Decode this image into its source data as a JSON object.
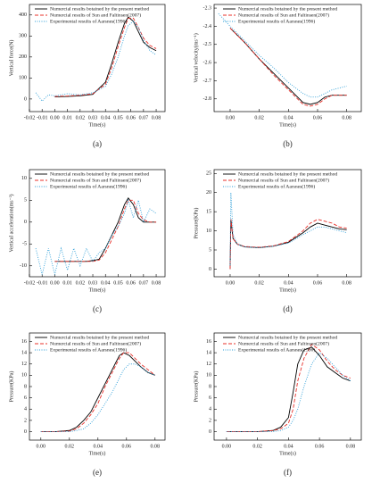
{
  "chart_data": [
    {
      "type": "line",
      "label": "(a)",
      "x_label": "Time(s)",
      "y_label": "Vertical force(N)",
      "legend": "upper left",
      "xlim": [
        -0.02,
        0.087
      ],
      "xticks": [
        -0.02,
        -0.01,
        {
          "value": 0,
          "label": "0.00"
        },
        0.01,
        0.02,
        0.03,
        0.04,
        0.05,
        0.06,
        0.07,
        0.08
      ],
      "ylim": [
        -60,
        450
      ],
      "yticks": [
        0,
        100,
        200,
        300,
        400
      ],
      "x": [
        -0.015,
        -0.01,
        -0.005,
        0,
        0.01,
        0.02,
        0.03,
        0.04,
        0.045,
        0.05,
        0.055,
        0.058,
        0.062,
        0.066,
        0.07,
        0.075,
        0.08
      ],
      "series": [
        {
          "name": "Numercial results botained by the present method",
          "color": "#000000",
          "style": "solid",
          "values": [
            null,
            null,
            null,
            10,
            12,
            15,
            22,
            80,
            170,
            270,
            360,
            390,
            370,
            320,
            270,
            245,
            230
          ]
        },
        {
          "name": "Numercial results of Sun and Faltinsen(2007)",
          "color": "#e8302a",
          "style": "dashed",
          "values": [
            null,
            null,
            null,
            12,
            14,
            18,
            25,
            70,
            150,
            250,
            340,
            385,
            385,
            340,
            290,
            255,
            240
          ]
        },
        {
          "name": "Experimental results of Aarsnes(1996)",
          "color": "#2f9fd8",
          "style": "dotted",
          "values": [
            30,
            -10,
            20,
            15,
            25,
            20,
            30,
            60,
            120,
            200,
            300,
            350,
            370,
            340,
            280,
            230,
            210
          ]
        }
      ]
    },
    {
      "type": "line",
      "label": "(b)",
      "x_label": "Time(s)",
      "y_label": "Vertical velocity(ms⁻¹)",
      "legend": "upper right",
      "xlim": [
        -0.011,
        0.09
      ],
      "xticks": [
        {
          "value": 0,
          "label": "0.00"
        },
        0.02,
        0.04,
        0.06,
        0.08
      ],
      "ylim": [
        -2.87,
        -2.28
      ],
      "yticks": [
        -2.3,
        -2.4,
        -2.5,
        -2.6,
        -2.7,
        -2.8
      ],
      "x": [
        -0.008,
        0,
        0.01,
        0.02,
        0.03,
        0.04,
        0.05,
        0.055,
        0.06,
        0.065,
        0.07,
        0.075,
        0.08
      ],
      "series": [
        {
          "name": "Numercial results botained by the present method",
          "color": "#000000",
          "style": "solid",
          "values": [
            null,
            -2.41,
            -2.49,
            -2.58,
            -2.66,
            -2.74,
            -2.82,
            -2.83,
            -2.82,
            -2.79,
            -2.78,
            -2.78,
            -2.78
          ]
        },
        {
          "name": "Numercial results of Sun and Faltinsen(2007)",
          "color": "#e8302a",
          "style": "dashed",
          "values": [
            null,
            -2.41,
            -2.49,
            -2.58,
            -2.67,
            -2.75,
            -2.83,
            -2.84,
            -2.83,
            -2.8,
            -2.78,
            -2.78,
            -2.78
          ]
        },
        {
          "name": "Experimental results of Aarsnes(1996)",
          "color": "#2f9fd8",
          "style": "dotted",
          "values": [
            -2.33,
            -2.4,
            -2.48,
            -2.56,
            -2.63,
            -2.71,
            -2.77,
            -2.79,
            -2.79,
            -2.77,
            -2.75,
            -2.74,
            -2.73
          ]
        }
      ]
    },
    {
      "type": "line",
      "label": "(c)",
      "x_label": "Time(s)",
      "y_label": "Vertical acceleration(ms⁻²)",
      "legend": "upper left",
      "xlim": [
        -0.02,
        0.087
      ],
      "xticks": [
        -0.02,
        -0.01,
        {
          "value": 0,
          "label": "0.00"
        },
        0.01,
        0.02,
        0.03,
        0.04,
        0.05,
        0.06,
        0.07,
        0.08
      ],
      "ylim": [
        -12.5,
        12
      ],
      "yticks": [
        -10,
        -5,
        0,
        5,
        10
      ],
      "x": [
        -0.015,
        -0.01,
        -0.005,
        0,
        0.005,
        0.01,
        0.015,
        0.02,
        0.025,
        0.03,
        0.035,
        0.04,
        0.045,
        0.05,
        0.055,
        0.058,
        0.062,
        0.066,
        0.07,
        0.075,
        0.08
      ],
      "series": [
        {
          "name": "Numercial results botained by the present method",
          "color": "#000000",
          "style": "solid",
          "values": [
            null,
            null,
            null,
            -9,
            -9,
            -9,
            -9,
            -9,
            -9,
            -8.8,
            -8.5,
            -6,
            -3,
            0,
            4,
            5.5,
            4,
            1,
            0,
            0,
            0
          ]
        },
        {
          "name": "Numercial results of Sun and Faltinsen(2007)",
          "color": "#e8302a",
          "style": "dashed",
          "values": [
            null,
            null,
            null,
            -9,
            -9,
            -9,
            -9,
            -9,
            -9,
            -9,
            -8.7,
            -7,
            -4,
            -1,
            3,
            5,
            5,
            2,
            0.5,
            0,
            0
          ]
        },
        {
          "name": "Experimental results of Aarsnes(1996)",
          "color": "#2f9fd8",
          "style": "dotted",
          "values": [
            -6,
            -12,
            -6,
            -12,
            -6,
            -11,
            -6,
            -10,
            -6,
            -9,
            -7,
            -6,
            -3,
            -1,
            2,
            5,
            1,
            5,
            0,
            3,
            2
          ]
        }
      ]
    },
    {
      "type": "line",
      "label": "(d)",
      "x_label": "Time(s)",
      "y_label": "Pressure(KPa)",
      "legend": "upper right",
      "xlim": [
        -0.011,
        0.09
      ],
      "xticks": [
        {
          "value": 0,
          "label": "0.00"
        },
        0.02,
        0.04,
        0.06,
        0.08
      ],
      "ylim": [
        -2,
        26
      ],
      "yticks": [
        0,
        5,
        10,
        15,
        20,
        25
      ],
      "x": [
        0,
        0.0005,
        0.002,
        0.005,
        0.01,
        0.02,
        0.03,
        0.04,
        0.05,
        0.055,
        0.06,
        0.065,
        0.07,
        0.075,
        0.08
      ],
      "series": [
        {
          "name": "Numercial results botained by the present method",
          "color": "#000000",
          "style": "solid",
          "values": [
            0,
            13,
            8,
            6.5,
            5.8,
            5.6,
            6,
            7,
            9.5,
            11,
            12,
            11.5,
            11,
            10.5,
            10.3
          ]
        },
        {
          "name": "Numercial results of Sun and Faltinsen(2007)",
          "color": "#e8302a",
          "style": "dashed",
          "values": [
            0,
            13,
            8,
            6.5,
            5.9,
            5.7,
            6.1,
            7.2,
            10,
            12,
            13,
            12.5,
            12,
            11,
            10.7
          ]
        },
        {
          "name": "Experimental results of Aarsnes(1996)",
          "color": "#2f9fd8",
          "style": "dotted",
          "values": [
            1,
            20,
            9,
            6.5,
            5.8,
            5.6,
            6,
            6.8,
            9,
            10,
            11,
            11,
            10.5,
            10,
            9.5
          ]
        }
      ]
    },
    {
      "type": "line",
      "label": "(e)",
      "x_label": "Time(s)",
      "y_label": "Pressure(KPa)",
      "legend": "upper left",
      "xlim": [
        -0.008,
        0.087
      ],
      "xticks": [
        {
          "value": 0,
          "label": "0.00"
        },
        0.02,
        0.04,
        0.06,
        0.08
      ],
      "ylim": [
        -1.5,
        17.5
      ],
      "yticks": [
        0,
        2,
        4,
        6,
        8,
        10,
        12,
        14,
        16
      ],
      "x": [
        0,
        0.01,
        0.02,
        0.025,
        0.03,
        0.035,
        0.04,
        0.045,
        0.05,
        0.055,
        0.058,
        0.062,
        0.066,
        0.07,
        0.075,
        0.08
      ],
      "series": [
        {
          "name": "Numercial results botained by the present method",
          "color": "#000000",
          "style": "solid",
          "values": [
            0,
            0,
            0.2,
            0.8,
            2,
            3.5,
            6,
            8.5,
            11,
            13.5,
            14,
            13.5,
            12.5,
            11.5,
            10.5,
            10
          ]
        },
        {
          "name": "Numercial results of Sun and Faltinsen(2007)",
          "color": "#e8302a",
          "style": "dashed",
          "values": [
            0,
            0,
            0.1,
            0.5,
            1.5,
            3,
            5,
            8,
            10.5,
            13,
            14,
            14,
            13,
            12,
            11,
            10
          ]
        },
        {
          "name": "Experimental results of Aarsnes(1996)",
          "color": "#2f9fd8",
          "style": "dotted",
          "values": [
            0,
            0,
            0,
            0.2,
            0.5,
            1.5,
            3,
            5,
            7,
            9.5,
            11,
            12,
            12,
            11.5,
            10.5,
            10
          ]
        }
      ]
    },
    {
      "type": "line",
      "label": "(f)",
      "x_label": "Time(s)",
      "y_label": "Pressure(KPa)",
      "legend": "upper right",
      "xlim": [
        -0.008,
        0.087
      ],
      "xticks": [
        {
          "value": 0,
          "label": "0.00"
        },
        0.02,
        0.04,
        0.06,
        0.08
      ],
      "ylim": [
        -1.5,
        17.5
      ],
      "yticks": [
        0,
        2,
        4,
        6,
        8,
        10,
        12,
        14,
        16
      ],
      "x": [
        0,
        0.01,
        0.02,
        0.03,
        0.035,
        0.04,
        0.043,
        0.046,
        0.05,
        0.055,
        0.06,
        0.065,
        0.07,
        0.075,
        0.08
      ],
      "series": [
        {
          "name": "Numercial results botained by the present method",
          "color": "#000000",
          "style": "solid",
          "values": [
            0,
            0,
            0,
            0.2,
            0.8,
            2.5,
            7,
            12,
            14.5,
            15,
            13.5,
            11.5,
            10.5,
            9.5,
            9
          ]
        },
        {
          "name": "Numercial results of Sun and Faltinsen(2007)",
          "color": "#e8302a",
          "style": "dashed",
          "values": [
            0,
            0,
            0,
            0.2,
            0.5,
            1.5,
            4,
            9,
            13,
            15.5,
            14.5,
            12.5,
            11,
            10,
            9.5
          ]
        },
        {
          "name": "Experimental results of Aarsnes(1996)",
          "color": "#2f9fd8",
          "style": "dotted",
          "values": [
            0,
            0,
            0,
            0,
            0.2,
            0.8,
            2,
            4,
            8,
            12,
            14,
            13,
            11.5,
            10,
            9
          ]
        }
      ]
    }
  ]
}
